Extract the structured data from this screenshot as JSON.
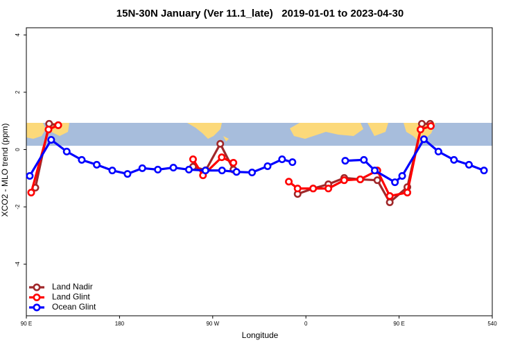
{
  "chart_data": {
    "type": "line",
    "title": "15N-30N January (Ver 11.1_late)   2019-01-01 to 2023-04-30",
    "x_label": "Longitude",
    "y_label": "XCO2 - MLO trend (ppm)",
    "xlim": [
      90,
      540
    ],
    "ylim": [
      -5.8,
      4.25
    ],
    "xticks": [
      {
        "value": 90,
        "label": "90 E"
      },
      180,
      {
        "value": 270,
        "label": "90 W"
      },
      {
        "value": 360,
        "label": "0"
      },
      {
        "value": 450,
        "label": "90 E"
      },
      540
    ],
    "yticks": [
      -4,
      -2,
      0,
      2,
      4
    ],
    "legend": "bottom-left",
    "series": [
      {
        "name": "Land Nadir",
        "color": "#a0282a",
        "x": [
          98.7,
          112,
          120.8,
          null,
          251,
          263.3,
          277.3,
          290,
          null,
          352,
          367,
          381.7,
          397,
          412.5,
          429,
          441,
          458,
          472,
          480
        ],
        "values": [
          -1.33,
          0.9,
          0.85,
          null,
          -0.6,
          -0.72,
          0.2,
          -0.7,
          null,
          -1.55,
          -1.36,
          -1.21,
          -0.99,
          -1.04,
          -1.07,
          -1.84,
          -1.31,
          0.9,
          0.9
        ]
      },
      {
        "name": "Land Glint",
        "color": "#ff0000",
        "x": [
          94.7,
          111.4,
          120.8,
          null,
          251,
          260.6,
          278.7,
          290,
          null,
          343.5,
          352,
          367,
          381.7,
          397,
          412.5,
          429,
          441,
          458,
          470.7,
          480.7
        ],
        "values": [
          -1.5,
          0.7,
          0.85,
          null,
          -0.34,
          -0.9,
          -0.27,
          -0.46,
          null,
          -1.12,
          -1.36,
          -1.36,
          -1.36,
          -1.07,
          -1.04,
          -0.73,
          -1.62,
          -1.5,
          0.7,
          0.82
        ]
      },
      {
        "name": "Ocean Glint",
        "color": "#0000ff",
        "x": [
          93.3,
          114,
          129,
          143.5,
          158,
          173,
          187.7,
          202,
          217,
          232,
          247,
          263,
          279,
          293,
          308,
          323,
          337,
          347,
          null,
          398,
          416,
          426.5,
          446,
          453,
          474,
          488,
          503,
          517.5,
          532
        ],
        "values": [
          -0.92,
          0.34,
          -0.07,
          -0.36,
          -0.53,
          -0.73,
          -0.85,
          -0.65,
          -0.7,
          -0.63,
          -0.7,
          -0.73,
          -0.73,
          -0.78,
          -0.8,
          -0.58,
          -0.34,
          -0.44,
          null,
          -0.39,
          -0.36,
          -0.73,
          -1.14,
          -0.92,
          0.36,
          -0.07,
          -0.36,
          -0.53,
          -0.73
        ]
      }
    ]
  }
}
